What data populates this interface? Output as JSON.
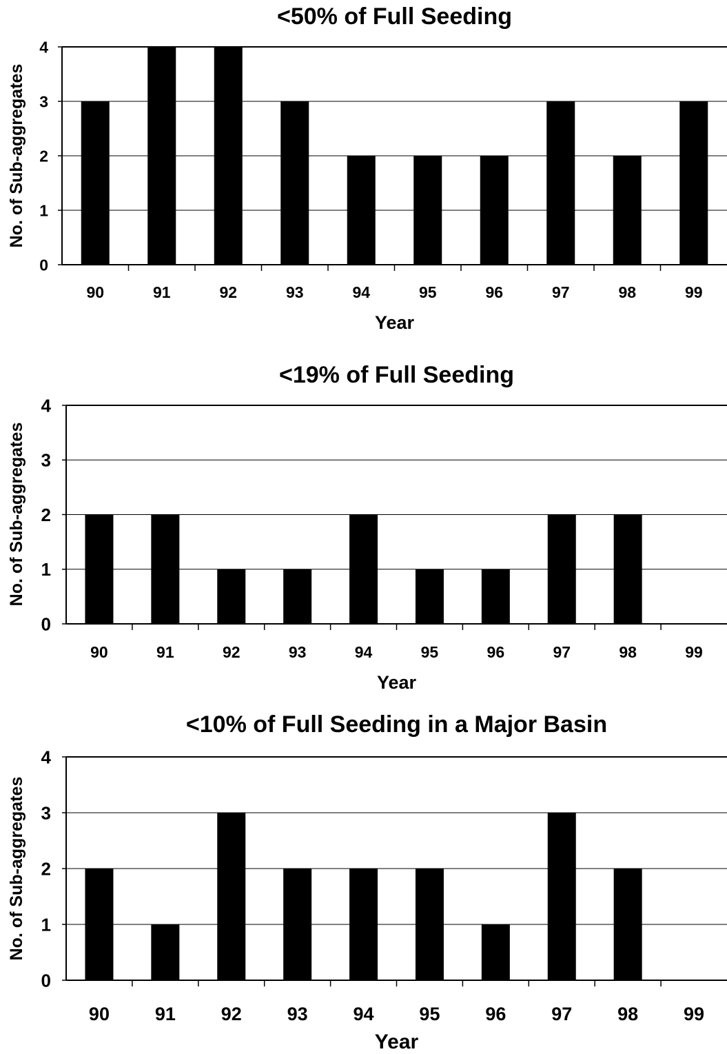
{
  "chart_data": [
    {
      "type": "bar",
      "title": "<50% of Full Seeding",
      "xlabel": "Year",
      "ylabel": "No. of Sub-aggregates",
      "categories": [
        "90",
        "91",
        "92",
        "93",
        "94",
        "95",
        "96",
        "97",
        "98",
        "99"
      ],
      "values": [
        3,
        4,
        4,
        3,
        2,
        2,
        2,
        3,
        2,
        3
      ],
      "ylim": [
        0,
        4
      ],
      "yticks": [
        "0",
        "1",
        "2",
        "3",
        "4"
      ],
      "grid": true,
      "legend": "none",
      "bar_color": "#000000"
    },
    {
      "type": "bar",
      "title": "<19% of Full Seeding",
      "xlabel": "Year",
      "ylabel": "No. of Sub-aggregates",
      "categories": [
        "90",
        "91",
        "92",
        "93",
        "94",
        "95",
        "96",
        "97",
        "98",
        "99"
      ],
      "values": [
        2,
        2,
        1,
        1,
        2,
        1,
        1,
        2,
        2,
        0
      ],
      "ylim": [
        0,
        4
      ],
      "yticks": [
        "0",
        "1",
        "2",
        "3",
        "4"
      ],
      "grid": true,
      "legend": "none",
      "bar_color": "#000000"
    },
    {
      "type": "bar",
      "title": "<10% of Full Seeding in a Major Basin",
      "xlabel": "Year",
      "ylabel": "No. of Sub-aggregates",
      "categories": [
        "90",
        "91",
        "92",
        "93",
        "94",
        "95",
        "96",
        "97",
        "98",
        "99"
      ],
      "values": [
        2,
        1,
        3,
        2,
        2,
        2,
        1,
        3,
        2,
        0
      ],
      "ylim": [
        0,
        4
      ],
      "yticks": [
        "0",
        "1",
        "2",
        "3",
        "4"
      ],
      "grid": true,
      "legend": "none",
      "bar_color": "#000000"
    }
  ]
}
